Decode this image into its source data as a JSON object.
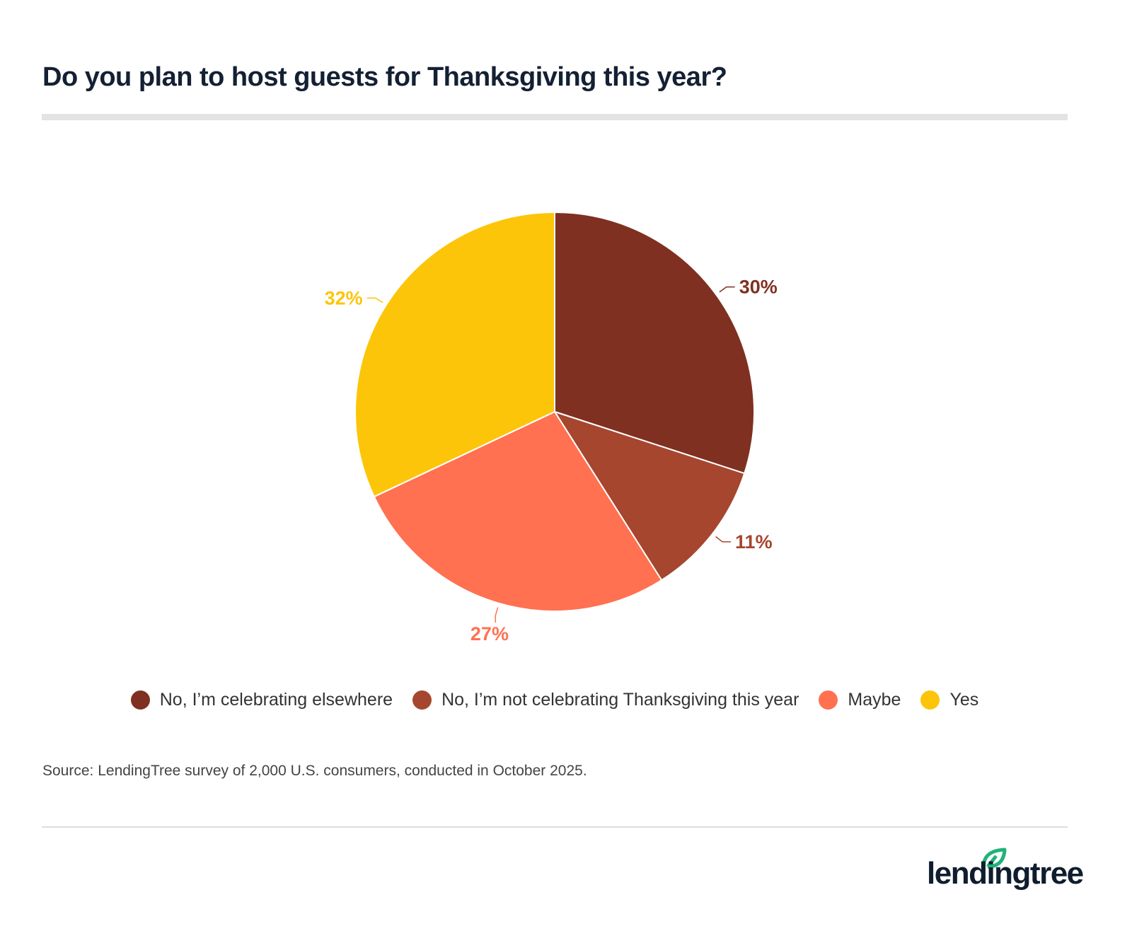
{
  "chart_data": {
    "type": "pie",
    "title": "Do you plan to host guests for Thanksgiving this year?",
    "slices": [
      {
        "label": "No, I’m celebrating elsewhere",
        "value": 30,
        "display": "30%",
        "color": "#7f3021"
      },
      {
        "label": "No, I’m not celebrating Thanksgiving this year",
        "value": 11,
        "display": "11%",
        "color": "#a6462f"
      },
      {
        "label": "Maybe",
        "value": 27,
        "display": "27%",
        "color": "#ff7150"
      },
      {
        "label": "Yes",
        "value": 32,
        "display": "32%",
        "color": "#fcc50a"
      }
    ],
    "start": "top, clockwise",
    "legend_position": "bottom"
  },
  "source": "Source: LendingTree survey of 2,000 U.S. consumers, conducted in October 2025.",
  "brand": {
    "name": "lendingtree",
    "color": "#1fb37a"
  }
}
